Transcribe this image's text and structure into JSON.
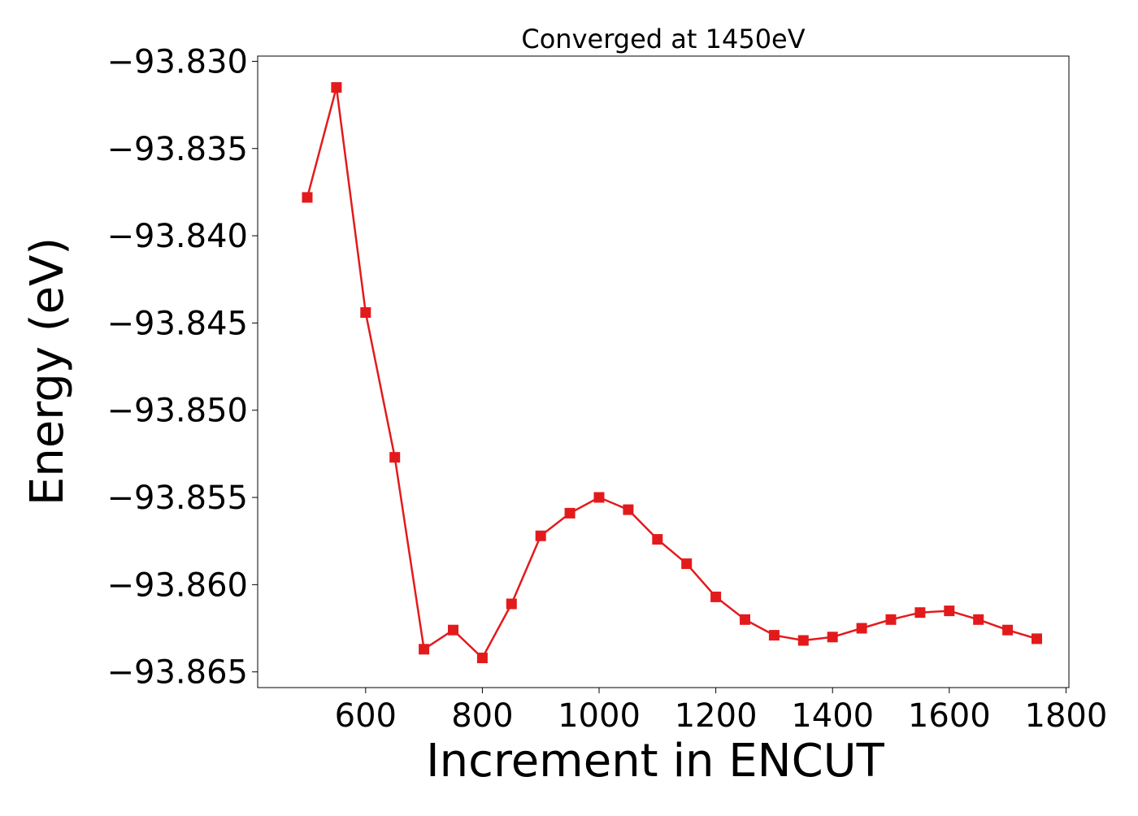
{
  "chart_data": {
    "type": "line",
    "title": "Converged at 1450eV",
    "xlabel": "Increment in ENCUT",
    "ylabel": "Energy (eV)",
    "xlim": [
      415,
      1805
    ],
    "ylim": [
      -93.8659,
      -93.8297
    ],
    "x_ticks": [
      600,
      800,
      1000,
      1200,
      1400,
      1600,
      1800
    ],
    "x_tick_labels": [
      "600",
      "800",
      "1000",
      "1200",
      "1400",
      "1600",
      "1800"
    ],
    "y_ticks": [
      -93.83,
      -93.835,
      -93.84,
      -93.845,
      -93.85,
      -93.855,
      -93.86,
      -93.865
    ],
    "y_tick_labels": [
      "−93.830",
      "−93.835",
      "−93.840",
      "−93.845",
      "−93.850",
      "−93.855",
      "−93.860",
      "−93.865"
    ],
    "grid": false,
    "series": [
      {
        "color": "#e31a1c",
        "marker": "square",
        "x": [
          500,
          550,
          600,
          650,
          700,
          750,
          800,
          850,
          900,
          950,
          1000,
          1050,
          1100,
          1150,
          1200,
          1250,
          1300,
          1350,
          1400,
          1450,
          1500,
          1550,
          1600,
          1650,
          1700,
          1750
        ],
        "y": [
          -93.8378,
          -93.8315,
          -93.8444,
          -93.8527,
          -93.8637,
          -93.8626,
          -93.8642,
          -93.8611,
          -93.8572,
          -93.8559,
          -93.855,
          -93.8557,
          -93.8574,
          -93.8588,
          -93.8607,
          -93.862,
          -93.8629,
          -93.8632,
          -93.863,
          -93.8625,
          -93.862,
          -93.8616,
          -93.8615,
          -93.862,
          -93.8626,
          -93.8631
        ]
      }
    ]
  }
}
